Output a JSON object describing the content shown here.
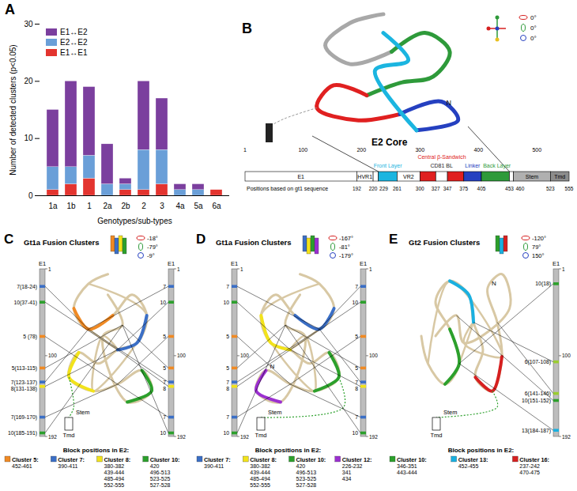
{
  "chart_data": {
    "type": "bar",
    "stacked": true,
    "x_label": "Genotypes/sub-types",
    "y_label": "Number of detected clusters (p<0.05)",
    "categories": [
      "1a",
      "1b",
      "1",
      "2a",
      "2b",
      "2",
      "3",
      "4a",
      "5a",
      "6a"
    ],
    "series": [
      {
        "name": "E1↔E1",
        "color": "#e3342f",
        "values": [
          1,
          2,
          3,
          0,
          1,
          1,
          2,
          0,
          0,
          1
        ]
      },
      {
        "name": "E2↔E2",
        "color": "#6a9fd8",
        "values": [
          4,
          3,
          4,
          2,
          1,
          7,
          6,
          1,
          1,
          0
        ]
      },
      {
        "name": "E1↔E2",
        "color": "#7b3f9e",
        "values": [
          10,
          15,
          12,
          7,
          1,
          12,
          9,
          1,
          1,
          0
        ]
      }
    ],
    "ylim": [
      0,
      30
    ],
    "yticks": [
      0,
      10,
      20,
      30
    ],
    "grid": false,
    "legend": "top-left"
  },
  "panels": {
    "A": {
      "letter": "A"
    },
    "B": {
      "letter": "B",
      "title": "E2 Core",
      "n_label": "N",
      "rotation": [
        "0°",
        "0°",
        "0°"
      ],
      "domain_map": {
        "range": [
          1,
          555
        ],
        "axis_ticks": [
          1,
          100,
          200,
          300,
          400,
          500
        ],
        "positions_label": "Positions based on gt1 sequence",
        "positions": [
          192,
          220,
          229,
          261,
          300,
          327,
          347,
          375,
          405,
          453,
          460,
          523,
          555
        ],
        "segments": [
          {
            "start": 1,
            "end": 192,
            "label": "E1",
            "color": "#ffffff"
          },
          {
            "start": 192,
            "end": 220,
            "label": "HVR1",
            "color": "#ffffff"
          },
          {
            "start": 220,
            "end": 229,
            "color": "#ffffff"
          },
          {
            "start": 229,
            "end": 261,
            "color": "#1bb5e0"
          },
          {
            "start": 261,
            "end": 300,
            "label": "VR2",
            "color": "#ffffff"
          },
          {
            "start": 300,
            "end": 327,
            "color": "#e02020"
          },
          {
            "start": 327,
            "end": 347,
            "color": "#ffffff"
          },
          {
            "start": 347,
            "end": 375,
            "color": "#e02020"
          },
          {
            "start": 375,
            "end": 405,
            "color": "#2540c0"
          },
          {
            "start": 405,
            "end": 453,
            "color": "#2e9a3a"
          },
          {
            "start": 453,
            "end": 460,
            "color": "#ffffff"
          },
          {
            "start": 460,
            "end": 523,
            "label": "Stem",
            "color": "#b0b0b0"
          },
          {
            "start": 523,
            "end": 555,
            "label": "Tmd",
            "color": "#8c8c8c"
          }
        ],
        "annotations": [
          {
            "text": "Front Layer",
            "start": 229,
            "end": 261,
            "color": "#1bb5e0"
          },
          {
            "text": "Central β-Sandwich",
            "start": 300,
            "end": 375,
            "color": "#e02020"
          },
          {
            "text": "CD81 BL",
            "start": 327,
            "end": 347,
            "color": "#222222"
          },
          {
            "text": "Linker",
            "start": 375,
            "end": 405,
            "color": "#2540c0"
          },
          {
            "text": "Back Layer",
            "start": 405,
            "end": 453,
            "color": "#2e9a3a"
          }
        ]
      }
    },
    "C": {
      "letter": "C",
      "title": "Gt1a Fusion Clusters",
      "rotation": [
        "-18°",
        "-79°",
        "-9°"
      ],
      "bar_title": "E1",
      "bar_range": [
        1,
        192
      ],
      "bar_ticks": [
        1,
        100,
        192
      ],
      "stem": "Stem",
      "tmd": "Tmd",
      "left_bar": [
        {
          "label": "7(18-24)",
          "pos": 21,
          "color": "#3b6fc6"
        },
        {
          "label": "10(37-41)",
          "pos": 39,
          "color": "#2ca02c"
        },
        {
          "label": "5 (78)",
          "pos": 78,
          "color": "#f08a24"
        },
        {
          "label": "5(113-115)",
          "pos": 114,
          "color": "#f08a24"
        },
        {
          "label": "7(123-137)",
          "pos": 130,
          "color": "#3b6fc6"
        },
        {
          "label": "8(131-138)",
          "pos": 135,
          "color": "#f2e31b"
        },
        {
          "label": "7(169-170)",
          "pos": 170,
          "color": "#3b6fc6"
        },
        {
          "label": "10(185-191)",
          "pos": 188,
          "color": "#2ca02c"
        }
      ],
      "right_bar": [
        {
          "label": "7",
          "pos": 21,
          "color": "#3b6fc6"
        },
        {
          "label": "10",
          "pos": 39,
          "color": "#2ca02c"
        },
        {
          "label": "5",
          "pos": 78,
          "color": "#f08a24"
        },
        {
          "label": "5",
          "pos": 114,
          "color": "#f08a24"
        },
        {
          "label": "7",
          "pos": 130,
          "color": "#3b6fc6"
        },
        {
          "label": "8",
          "pos": 135,
          "color": "#f2e31b"
        },
        {
          "label": "7",
          "pos": 170,
          "color": "#3b6fc6"
        },
        {
          "label": "10",
          "pos": 188,
          "color": "#2ca02c"
        }
      ],
      "legend_title": "Block positions in E2:",
      "clusters": [
        {
          "name": "Cluster 5:",
          "color": "#f08a24",
          "blocks": [
            "452-461"
          ]
        },
        {
          "name": "Cluster 7:",
          "color": "#3b6fc6",
          "blocks": [
            "390-411"
          ]
        },
        {
          "name": "Cluster 8:",
          "color": "#f2e31b",
          "blocks": [
            "380-382",
            "439-444",
            "485-494",
            "552-555"
          ]
        },
        {
          "name": "Cluster 10:",
          "color": "#2ca02c",
          "blocks": [
            "420",
            "496-513",
            "523-525",
            "527-528"
          ]
        }
      ]
    },
    "D": {
      "letter": "D",
      "title": "Gt1a Fusion Clusters",
      "n_label": "N",
      "rotation": [
        "-167°",
        "-81°",
        "-179°"
      ],
      "bar_title": "E1",
      "bar_range": [
        1,
        192
      ],
      "bar_ticks": [
        1,
        100,
        192
      ],
      "stem": "Stem",
      "tmd": "Tmd",
      "left_bar": [
        {
          "label": "7",
          "pos": 21,
          "color": "#3b6fc6"
        },
        {
          "label": "10",
          "pos": 39,
          "color": "#2ca02c"
        },
        {
          "label": "5",
          "pos": 78,
          "color": "#f08a24"
        },
        {
          "label": "5",
          "pos": 114,
          "color": "#f08a24"
        },
        {
          "label": "7",
          "pos": 130,
          "color": "#3b6fc6"
        },
        {
          "label": "8",
          "pos": 135,
          "color": "#f2e31b"
        },
        {
          "label": "7",
          "pos": 170,
          "color": "#3b6fc6"
        },
        {
          "label": "10",
          "pos": 188,
          "color": "#2ca02c"
        }
      ],
      "right_bar": [
        {
          "label": "7",
          "pos": 21,
          "color": "#3b6fc6"
        },
        {
          "label": "10",
          "pos": 39,
          "color": "#2ca02c"
        },
        {
          "label": "5",
          "pos": 78,
          "color": "#f08a24"
        },
        {
          "label": "5",
          "pos": 114,
          "color": "#f08a24"
        },
        {
          "label": "7",
          "pos": 130,
          "color": "#3b6fc6"
        },
        {
          "label": "8",
          "pos": 135,
          "color": "#f2e31b"
        },
        {
          "label": "7",
          "pos": 170,
          "color": "#3b6fc6"
        },
        {
          "label": "10",
          "pos": 188,
          "color": "#2ca02c"
        }
      ],
      "legend_title": "Block positions in E2:",
      "clusters": [
        {
          "name": "Cluster 7:",
          "color": "#3b6fc6",
          "blocks": [
            "390-411"
          ]
        },
        {
          "name": "Cluster 8:",
          "color": "#f2e31b",
          "blocks": [
            "380-382",
            "439-444",
            "485-494",
            "552-555"
          ]
        },
        {
          "name": "Cluster 10:",
          "color": "#2ca02c",
          "blocks": [
            "420",
            "496-513",
            "523-525",
            "527-528"
          ]
        },
        {
          "name": "Cluster 12:",
          "color": "#9b30d0",
          "blocks": [
            "226-232",
            "341",
            "434"
          ]
        }
      ]
    },
    "E": {
      "letter": "E",
      "title": "Gt2 Fusion Clusters",
      "n_label": "N",
      "rotation": [
        "-120°",
        "79°",
        "150°"
      ],
      "bar_title": "E1",
      "bar_range": [
        1,
        192
      ],
      "bar_ticks": [
        1,
        100,
        192
      ],
      "stem": "Stem",
      "tmd": "Tmd",
      "right_bar": [
        {
          "label": "10(18)",
          "pos": 18,
          "color": "#2ca02c"
        },
        {
          "label": "6(107-108)",
          "pos": 107,
          "color": "#9acd32"
        },
        {
          "label": "6(141-146)",
          "pos": 143,
          "color": "#9acd32"
        },
        {
          "label": "10(151-152)",
          "pos": 151,
          "color": "#2ca02c"
        },
        {
          "label": "13(184-187)",
          "pos": 185,
          "color": "#1ab0e0"
        }
      ],
      "legend_title": "Block positions in E2:",
      "clusters": [
        {
          "name": "Cluster 10:",
          "color": "#2ca02c",
          "blocks": [
            "346-351",
            "443-444"
          ]
        },
        {
          "name": "Cluster 13:",
          "color": "#1ab0e0",
          "blocks": [
            "452-455"
          ]
        },
        {
          "name": "Cluster 16:",
          "color": "#d62020",
          "blocks": [
            "237-242",
            "470-475"
          ]
        }
      ]
    }
  }
}
